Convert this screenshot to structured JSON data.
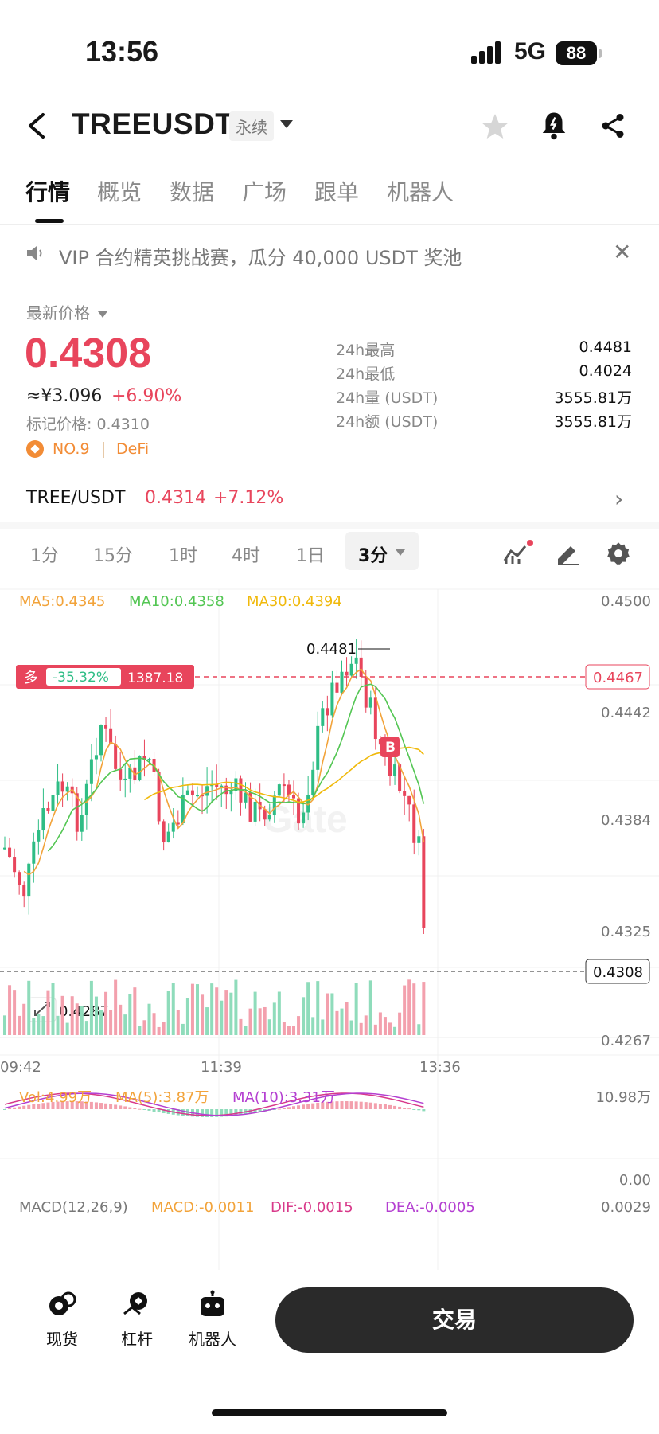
{
  "status": {
    "time": "13:56",
    "network": "5G",
    "battery": "88"
  },
  "header": {
    "title": "TREEUSDT",
    "tag": "永续",
    "icons": [
      "back-icon",
      "star-icon",
      "bell-icon",
      "share-icon"
    ]
  },
  "tabs": [
    {
      "label": "行情",
      "active": true
    },
    {
      "label": "概览"
    },
    {
      "label": "数据"
    },
    {
      "label": "广场"
    },
    {
      "label": "跟单"
    },
    {
      "label": "机器人"
    }
  ],
  "announcement": {
    "text": "VIP 合约精英挑战赛，瓜分 40,000 USDT 奖池"
  },
  "price": {
    "label": "最新价格",
    "last": "0.4308",
    "cny": "≈¥3.096",
    "change": "+6.90%",
    "mark": "标记价格: 0.4310",
    "rank": "NO.9",
    "sector": "DeFi"
  },
  "stats": [
    {
      "label": "24h最高",
      "value": "0.4481"
    },
    {
      "label": "24h最低",
      "value": "0.4024"
    },
    {
      "label": "24h量 (USDT)",
      "value": "3555.81万"
    },
    {
      "label": "24h额 (USDT)",
      "value": "3555.81万"
    }
  ],
  "spot_pair": {
    "name": "TREE/USDT",
    "price": "0.4314",
    "change": "+7.12%"
  },
  "intervals": [
    "1分",
    "15分",
    "1时",
    "4时",
    "1日"
  ],
  "selected_interval": "3分",
  "indicators": {
    "ma5": "MA5:0.4345",
    "ma10": "MA10:0.4358",
    "ma30": "MA30:0.4394",
    "vol": "Vol:4.99万",
    "vol_ma5": "MA(5):3.87万",
    "vol_ma10": "MA(10):3.31万",
    "macd_title": "MACD(12,26,9)",
    "macd": "MACD:-0.0011",
    "dif": "DIF:-0.0015",
    "dea": "DEA:-0.0005"
  },
  "axis": {
    "price_ticks": [
      "0.4500",
      "0.4442",
      "0.4384",
      "0.4325",
      "0.4267"
    ],
    "vol_ticks": [
      "10.98万",
      "0.00"
    ],
    "macd_tick": "0.0029",
    "time_ticks": [
      "09:42",
      "11:39",
      "13:36"
    ]
  },
  "chart_annotations": {
    "high": "0.4481",
    "low": "0.4287",
    "position_side": "多",
    "position_pnl": "-35.32%",
    "position_entry": "1387.18",
    "position_price_tag": "0.4467",
    "current_price_tag": "0.4308",
    "buy_marker": "B",
    "watermark": "Gate"
  },
  "bottom_nav": [
    {
      "label": "现货",
      "icon": "spot-icon"
    },
    {
      "label": "杠杆",
      "icon": "margin-icon"
    },
    {
      "label": "机器人",
      "icon": "robot-icon"
    }
  ],
  "trade_button": "交易",
  "colors": {
    "up": "#2ebd85",
    "down": "#e8455c",
    "ma5": "#f2a33a",
    "ma10": "#53c653",
    "ma30": "#f0b90b",
    "vol_ma10": "#b43fd1"
  }
}
